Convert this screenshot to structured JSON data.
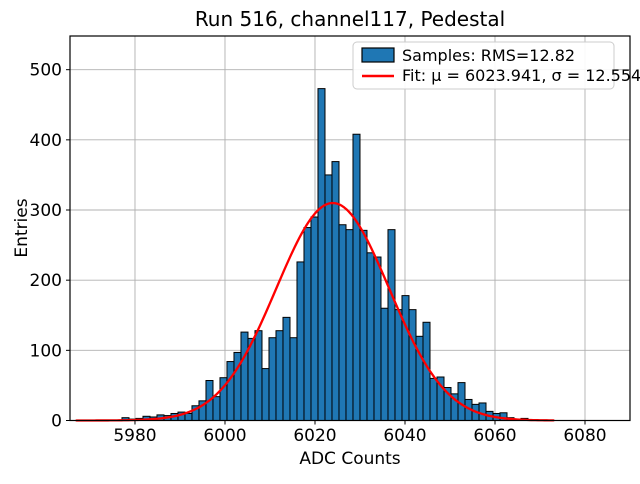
{
  "chart_data": {
    "type": "bar",
    "title": "Run 516, channel117, Pedestal",
    "xlabel": "ADC Counts",
    "ylabel": "Entries",
    "xlim": [
      5965.56,
      6090
    ],
    "ylim": [
      0,
      548
    ],
    "xticks": [
      5980,
      6000,
      6020,
      6040,
      6060,
      6080
    ],
    "yticks": [
      0,
      100,
      200,
      300,
      400,
      500
    ],
    "grid": true,
    "legend_position": "upper right",
    "legend": {
      "samples_label": "Samples: RMS=12.82",
      "fit_label": "Fit: μ = 6023.941, σ = 12.554"
    },
    "colors": {
      "bar_fill": "#1f77b4",
      "bar_edge": "#000000",
      "fit_line": "#ff0000",
      "grid_line": "#b0b0b0",
      "legend_border": "#cccccc"
    },
    "bins": {
      "start": 5977.11,
      "width": 1.5556,
      "counts": [
        4,
        2,
        3,
        6,
        5,
        8,
        7,
        10,
        12,
        10,
        21,
        28,
        57,
        34,
        61,
        84,
        97,
        126,
        117,
        128,
        74,
        118,
        128,
        147,
        118,
        226,
        275,
        290,
        473,
        350,
        369,
        279,
        272,
        408,
        271,
        239,
        233,
        160,
        272,
        158,
        178,
        158,
        120,
        140,
        60,
        62,
        47,
        38,
        54,
        30,
        23,
        25,
        13,
        10,
        11,
        4,
        2,
        3
      ]
    },
    "fit": {
      "mu": 6023.941,
      "sigma": 12.554,
      "amplitude": 310,
      "x_range": [
        5967,
        6073
      ]
    },
    "rms": 12.82
  }
}
